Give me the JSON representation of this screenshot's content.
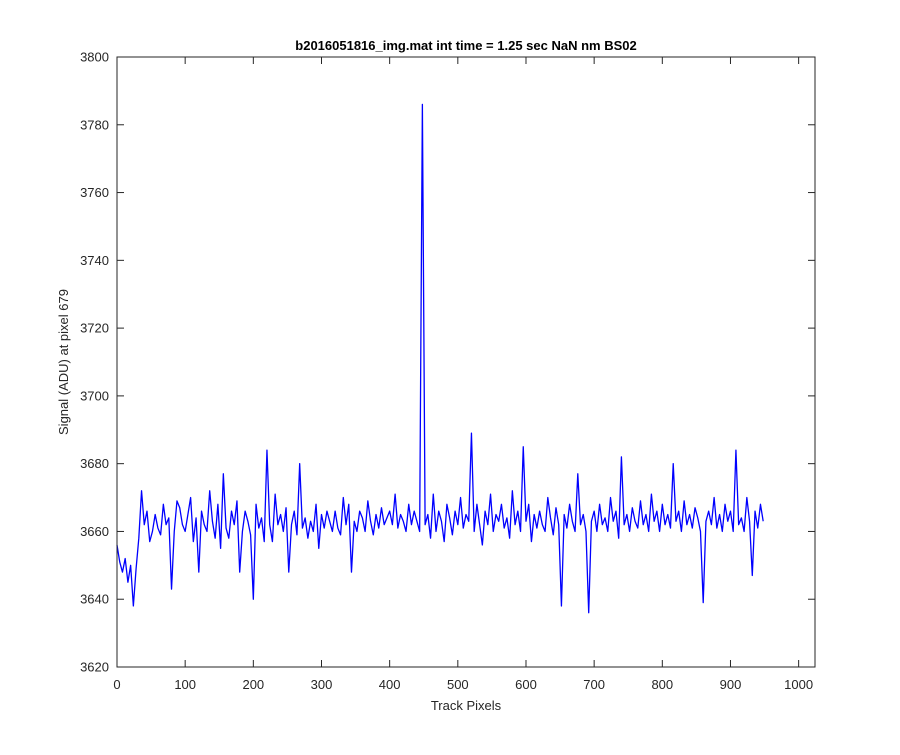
{
  "chart_data": {
    "type": "line",
    "title": "b2016051816_img.mat int time = 1.25 sec  NaN nm BS02",
    "xlabel": "Track Pixels",
    "ylabel": "Signal (ADU) at pixel 679",
    "xlim": [
      0,
      1024
    ],
    "ylim": [
      3620,
      3800
    ],
    "xticks": [
      0,
      100,
      200,
      300,
      400,
      500,
      600,
      700,
      800,
      900,
      1000
    ],
    "yticks": [
      3620,
      3640,
      3660,
      3680,
      3700,
      3720,
      3740,
      3760,
      3780,
      3800
    ],
    "grid": false,
    "legend": "none",
    "series_color": "#0000ff",
    "series": [
      {
        "x_start": 0,
        "x_step": 4,
        "values": [
          3656,
          3651,
          3648,
          3652,
          3645,
          3650,
          3638,
          3649,
          3658,
          3672,
          3662,
          3666,
          3657,
          3660,
          3665,
          3661,
          3659,
          3668,
          3662,
          3664,
          3643,
          3660,
          3669,
          3667,
          3662,
          3660,
          3665,
          3670,
          3657,
          3664,
          3648,
          3666,
          3662,
          3660,
          3672,
          3663,
          3658,
          3668,
          3655,
          3677,
          3661,
          3658,
          3666,
          3662,
          3669,
          3648,
          3660,
          3666,
          3663,
          3659,
          3640,
          3668,
          3661,
          3664,
          3657,
          3684,
          3662,
          3657,
          3671,
          3662,
          3665,
          3660,
          3667,
          3648,
          3662,
          3666,
          3659,
          3680,
          3661,
          3664,
          3658,
          3663,
          3660,
          3668,
          3655,
          3665,
          3661,
          3666,
          3663,
          3660,
          3666,
          3661,
          3659,
          3670,
          3662,
          3668,
          3648,
          3663,
          3660,
          3666,
          3664,
          3660,
          3669,
          3663,
          3659,
          3665,
          3661,
          3667,
          3662,
          3664,
          3666,
          3662,
          3671,
          3661,
          3665,
          3663,
          3660,
          3668,
          3662,
          3666,
          3663,
          3660,
          3786,
          3662,
          3665,
          3658,
          3671,
          3660,
          3666,
          3663,
          3657,
          3668,
          3664,
          3659,
          3666,
          3662,
          3670,
          3661,
          3665,
          3663,
          3689,
          3660,
          3668,
          3662,
          3656,
          3666,
          3662,
          3671,
          3660,
          3665,
          3663,
          3668,
          3661,
          3664,
          3658,
          3672,
          3662,
          3666,
          3660,
          3685,
          3663,
          3668,
          3657,
          3665,
          3661,
          3666,
          3662,
          3660,
          3670,
          3664,
          3659,
          3667,
          3662,
          3638,
          3665,
          3661,
          3668,
          3663,
          3660,
          3677,
          3662,
          3665,
          3660,
          3636,
          3663,
          3666,
          3660,
          3668,
          3662,
          3664,
          3660,
          3670,
          3663,
          3666,
          3658,
          3682,
          3662,
          3665,
          3660,
          3667,
          3663,
          3661,
          3669,
          3662,
          3665,
          3660,
          3671,
          3663,
          3666,
          3660,
          3668,
          3662,
          3665,
          3661,
          3680,
          3663,
          3666,
          3660,
          3669,
          3662,
          3665,
          3661,
          3667,
          3664,
          3660,
          3639,
          3663,
          3666,
          3662,
          3670,
          3661,
          3665,
          3660,
          3668,
          3663,
          3666,
          3660,
          3684,
          3662,
          3664,
          3660,
          3670,
          3663,
          3647,
          3666,
          3661,
          3668,
          3663
        ]
      }
    ]
  }
}
